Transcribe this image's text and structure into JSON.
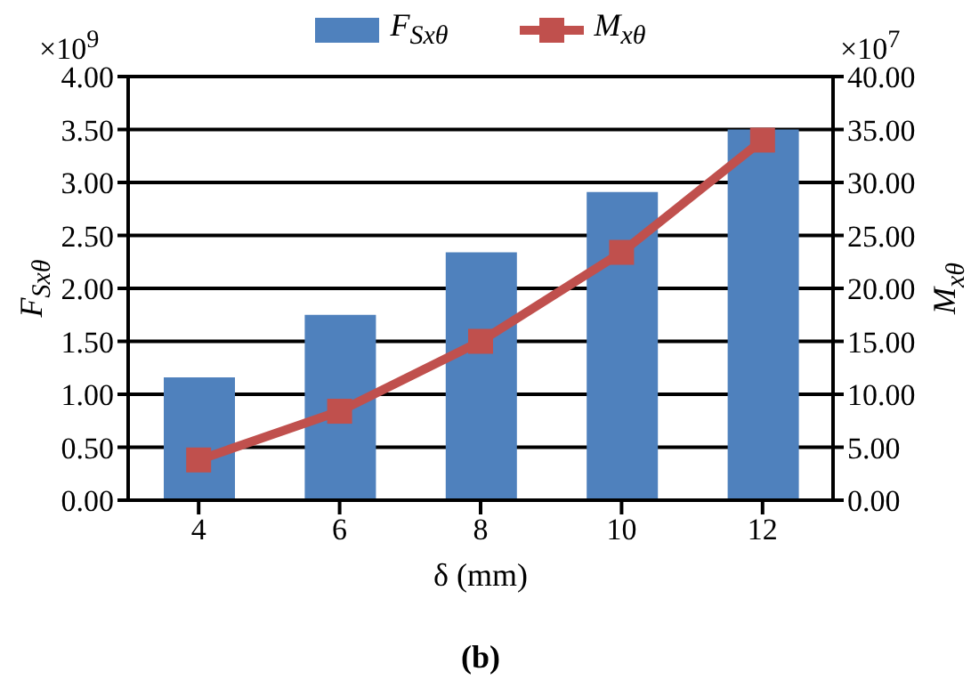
{
  "chart_data": {
    "type": "bar",
    "categories": [
      "4",
      "6",
      "8",
      "10",
      "12"
    ],
    "series": [
      {
        "name": "F$_{Sxθ}$",
        "color": "#4f81bd",
        "values": [
          1.16,
          1.75,
          2.34,
          2.91,
          3.5
        ]
      },
      {
        "name": "M$_{xθ}$",
        "type": "line",
        "axis": "y2",
        "color": "#c0504d",
        "values": [
          3.8,
          8.4,
          15.0,
          23.4,
          34.0
        ]
      }
    ],
    "xlabel": "δ (mm)",
    "ylabel": "F$_{Sxθ}$",
    "y2label": "M$_{xθ}$",
    "ylim": [
      0,
      4
    ],
    "yticks": [
      {
        "value": 0,
        "label": "0.00"
      },
      {
        "value": 0.5,
        "label": "0.50"
      },
      {
        "value": 1,
        "label": "1.00"
      },
      {
        "value": 1.5,
        "label": "1.50"
      },
      {
        "value": 2,
        "label": "2.00"
      },
      {
        "value": 2.5,
        "label": "2.50"
      },
      {
        "value": 3,
        "label": "3.00"
      },
      {
        "value": 3.5,
        "label": "3.50"
      },
      {
        "value": 4,
        "label": "4.00"
      }
    ],
    "y2lim": [
      0,
      40
    ],
    "y2ticks": [
      {
        "value": 0,
        "label": "0.00"
      },
      {
        "value": 5,
        "label": "5.00"
      },
      {
        "value": 10,
        "label": "10.00"
      },
      {
        "value": 15,
        "label": "15.00"
      },
      {
        "value": 20,
        "label": "20.00"
      },
      {
        "value": 25,
        "label": "25.00"
      },
      {
        "value": 30,
        "label": "30.00"
      },
      {
        "value": 35,
        "label": "35.00"
      },
      {
        "value": 40,
        "label": "40.00"
      }
    ],
    "annotations": [
      "×10$^{9}$",
      "×10$^{7}$",
      "(b)"
    ],
    "grid": "y",
    "legend": "top",
    "marker": "square",
    "line_style": "solid"
  }
}
